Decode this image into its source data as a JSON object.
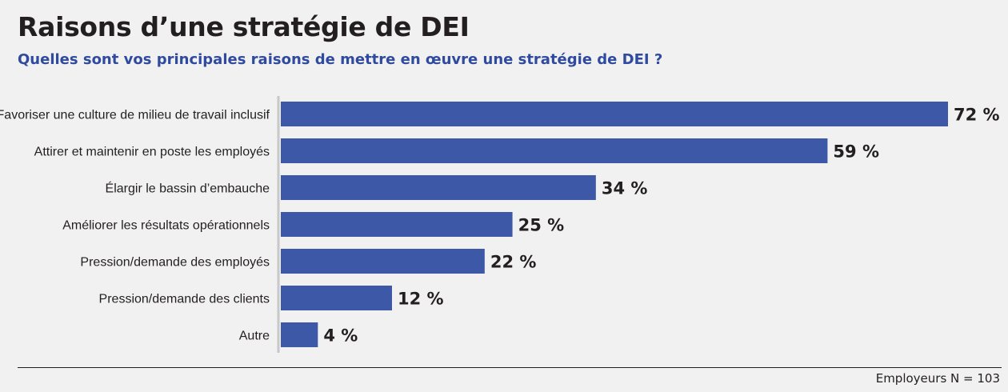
{
  "header": {
    "title": "Raisons d’une stratégie de DEI",
    "subtitle": "Quelles sont vos principales raisons de mettre en œuvre une stratégie de DEI ?"
  },
  "footer": {
    "note": "Employeurs N = 103"
  },
  "colors": {
    "bar": "#3d58a6",
    "subtitle": "#2f4a9e",
    "text": "#231f20",
    "axis": "#c8c8c8",
    "background": "#f1f1f2"
  },
  "chart_data": {
    "type": "bar",
    "orientation": "horizontal",
    "categories": [
      "Favoriser une culture de milieu de travail inclusif",
      "Attirer et maintenir en poste les employés",
      "Élargir le bassin d’embauche",
      "Améliorer les résultats opérationnels",
      "Pression/demande des employés",
      "Pression/demande des clients",
      "Autre"
    ],
    "values": [
      72,
      59,
      34,
      25,
      22,
      12,
      4
    ],
    "value_labels": [
      "72 %",
      "59 %",
      "34 %",
      "25 %",
      "22 %",
      "12 %",
      "4 %"
    ],
    "unit": "%",
    "xlim": [
      0,
      72
    ],
    "grid": false,
    "legend": "none"
  }
}
